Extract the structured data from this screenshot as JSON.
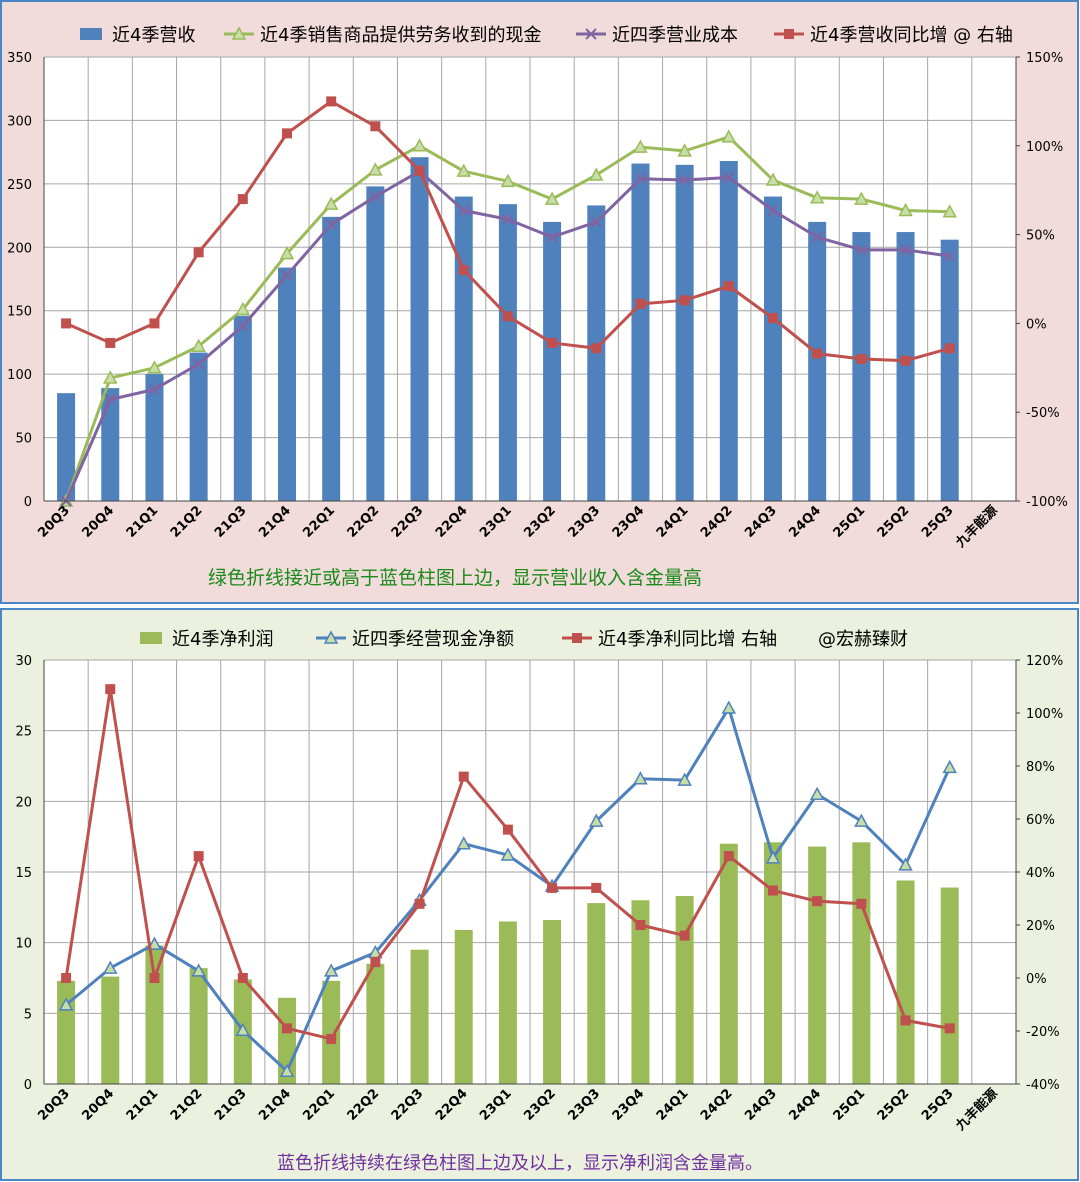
{
  "chart_data": [
    {
      "type": "bar+line",
      "title": "",
      "categories": [
        "20Q3",
        "20Q4",
        "21Q1",
        "21Q2",
        "21Q3",
        "21Q4",
        "22Q1",
        "22Q2",
        "22Q3",
        "22Q4",
        "23Q1",
        "23Q2",
        "23Q3",
        "23Q4",
        "24Q1",
        "24Q2",
        "24Q3",
        "24Q4",
        "25Q1",
        "25Q2",
        "25Q3",
        "九丰能源"
      ],
      "ylim": [
        0,
        350
      ],
      "y_ticks": [
        "0",
        "50",
        "100",
        "150",
        "200",
        "250",
        "300",
        "350"
      ],
      "y2lim": [
        -100,
        150
      ],
      "y2_ticks": [
        "-100%",
        "-50%",
        "0%",
        "50%",
        "100%",
        "150%"
      ],
      "series": [
        {
          "name": "近4季营收",
          "kind": "bar",
          "axis": "left",
          "color": "#4f81bd",
          "values": [
            85,
            89,
            100,
            117,
            146,
            184,
            224,
            248,
            271,
            240,
            234,
            220,
            233,
            266,
            265,
            268,
            240,
            220,
            212,
            212,
            206,
            null
          ]
        },
        {
          "name": "近4季销售商品提供劳务收到的现金",
          "kind": "line",
          "marker": "triangle",
          "axis": "left",
          "color": "#9bbb59",
          "values": [
            0,
            97,
            105,
            122,
            151,
            195,
            234,
            261,
            280,
            260,
            252,
            238,
            257,
            279,
            276,
            287,
            253,
            239,
            238,
            229,
            228,
            null
          ]
        },
        {
          "name": "近四季营业成本",
          "kind": "line",
          "marker": "x",
          "axis": "left",
          "color": "#8064a2",
          "values": [
            0,
            80,
            88,
            108,
            138,
            178,
            218,
            240,
            260,
            229,
            222,
            208,
            220,
            254,
            253,
            255,
            229,
            208,
            198,
            198,
            193,
            null
          ]
        },
        {
          "name": "近4季营收同比增 @ 右轴",
          "kind": "line",
          "marker": "square",
          "axis": "right",
          "color": "#c0504d",
          "values": [
            0,
            -11,
            0,
            40,
            70,
            107,
            125,
            111,
            86,
            30,
            4,
            -11,
            -14,
            11,
            13,
            21,
            3,
            -17,
            -20,
            -21,
            -14,
            null
          ]
        }
      ],
      "annotation": "绿色折线接近或高于蓝色柱图上边，显示营业收入含金量高"
    },
    {
      "type": "bar+line",
      "title": "",
      "categories": [
        "20Q3",
        "20Q4",
        "21Q1",
        "21Q2",
        "21Q3",
        "21Q4",
        "22Q1",
        "22Q2",
        "22Q3",
        "22Q4",
        "23Q1",
        "23Q2",
        "23Q3",
        "23Q4",
        "24Q1",
        "24Q2",
        "24Q3",
        "24Q4",
        "25Q1",
        "25Q2",
        "25Q3",
        "九丰能源"
      ],
      "ylim": [
        0,
        30
      ],
      "y_ticks": [
        "0",
        "5",
        "10",
        "15",
        "20",
        "25",
        "30"
      ],
      "y2lim": [
        -40,
        120
      ],
      "y2_ticks": [
        "-40%",
        "-20%",
        "0%",
        "20%",
        "40%",
        "60%",
        "80%",
        "100%",
        "120%"
      ],
      "series": [
        {
          "name": "近4季净利润",
          "kind": "bar",
          "axis": "left",
          "color": "#9bbb59",
          "values": [
            7.3,
            7.6,
            9.8,
            8.2,
            7.4,
            6.1,
            7.3,
            8.5,
            9.5,
            10.9,
            11.5,
            11.6,
            12.8,
            13.0,
            13.3,
            17.0,
            17.1,
            16.8,
            17.1,
            14.4,
            13.9,
            null
          ]
        },
        {
          "name": "近四季经营现金净额",
          "kind": "line",
          "marker": "triangle",
          "axis": "left",
          "color": "#4f81bd",
          "values": [
            5.6,
            8.2,
            9.9,
            8.0,
            3.8,
            0.9,
            8.0,
            9.3,
            13.0,
            17.0,
            16.2,
            14.0,
            18.6,
            21.6,
            21.5,
            26.6,
            16.0,
            20.5,
            18.6,
            15.5,
            22.4,
            null
          ]
        },
        {
          "name": "近4季净利同比增 右轴",
          "kind": "line",
          "marker": "square",
          "axis": "right",
          "color": "#c0504d",
          "values": [
            0,
            109,
            0,
            46,
            0,
            -19,
            -23,
            6,
            28,
            76,
            56,
            34,
            34,
            20,
            16,
            46,
            33,
            29,
            28,
            -16,
            -19,
            null
          ]
        }
      ],
      "legend_extra": "@宏赫臻财",
      "annotation": "蓝色折线持续在绿色柱图上边及以上，显示净利润含金量高。"
    }
  ]
}
